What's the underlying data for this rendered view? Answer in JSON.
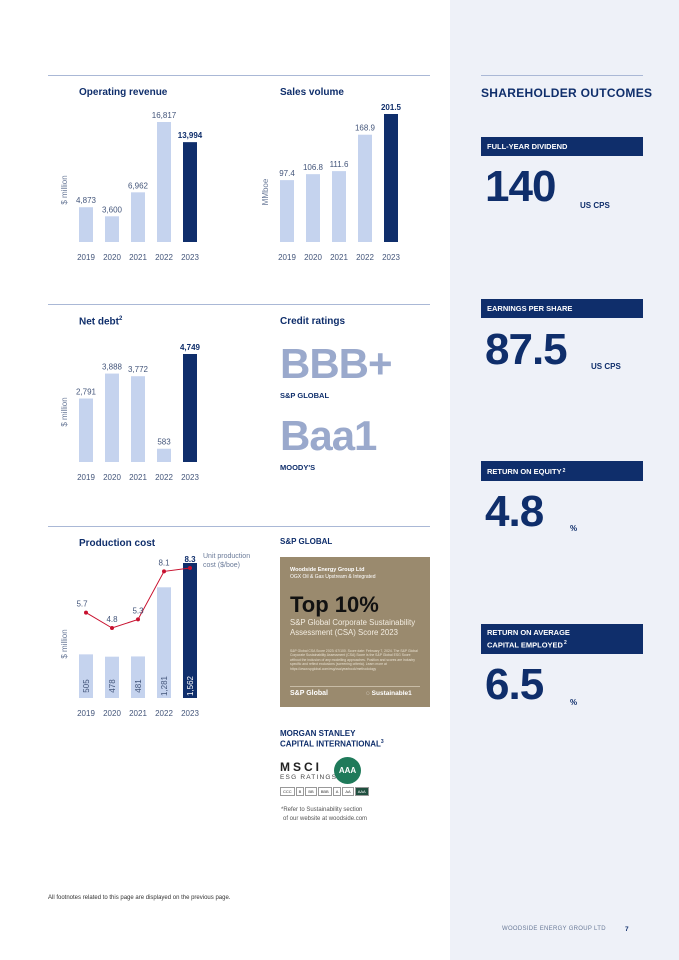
{
  "colors": {
    "navy": "#0f2e6b",
    "light_bar": "#c5d3ee",
    "red_line": "#c8102e",
    "panel": "#eef1f8"
  },
  "chart_data": [
    {
      "type": "bar",
      "title": "Operating revenue",
      "ylabel": "$ million",
      "categories": [
        "2019",
        "2020",
        "2021",
        "2022",
        "2023"
      ],
      "values": [
        4873,
        3600,
        6962,
        16817,
        13994
      ],
      "labels": [
        "4,873",
        "3,600",
        "6,962",
        "16,817",
        "13,994"
      ],
      "highlight_last": true
    },
    {
      "type": "bar",
      "title": "Sales volume",
      "ylabel": "MMboe",
      "categories": [
        "2019",
        "2020",
        "2021",
        "2022",
        "2023"
      ],
      "values": [
        97.4,
        106.8,
        111.6,
        168.9,
        201.5
      ],
      "labels": [
        "97.4",
        "106.8",
        "111.6",
        "168.9",
        "201.5"
      ],
      "highlight_last": true
    },
    {
      "type": "bar",
      "title": "Net debt",
      "title_sup": "2",
      "ylabel": "$ million",
      "categories": [
        "2019",
        "2020",
        "2021",
        "2022",
        "2023"
      ],
      "values": [
        2791,
        3888,
        3772,
        583,
        4749
      ],
      "labels": [
        "2,791",
        "3,888",
        "3,772",
        "583",
        "4,749"
      ],
      "highlight_last": true
    },
    {
      "type": "bar",
      "title": "Production cost",
      "ylabel": "$ million",
      "categories": [
        "2019",
        "2020",
        "2021",
        "2022",
        "2023"
      ],
      "values": [
        505,
        478,
        481,
        1281,
        1562
      ],
      "labels": [
        "505",
        "478",
        "481",
        "1,281",
        "1,562"
      ],
      "highlight_last": true,
      "line_series": {
        "name": "Unit production cost ($/boe)",
        "values": [
          5.7,
          4.8,
          5.3,
          8.1,
          8.3
        ],
        "labels": [
          "5.7",
          "4.8",
          "5.3",
          "8.1",
          "8.3"
        ]
      }
    }
  ],
  "credit": {
    "heading": "Credit ratings",
    "sp_rating": "BBB+",
    "sp_agency": "S&P GLOBAL",
    "moodys_rating": "Baa1",
    "moodys_agency": "MOODY'S"
  },
  "sp_section": {
    "heading": "S&P GLOBAL",
    "card": {
      "company": "Woodside Energy Group Ltd",
      "industry": "OGX Oil & Gas Upstream & Integrated",
      "headline": "Top 10%",
      "subtitle": "S&P Global Corporate Sustainability Assessment (CSA) Score 2023",
      "fine_print": "S&P Global CSA Score 2023: 67/100. Score date: February 7, 2024. The S&P Global Corporate Sustainability Assessment (CSA) Score is the S&P Global ESG Score without the inclusion of any modelling approaches. Position and scores are industry specific and reflect exclusions (screening criteria). Learn more at https://www.spglobal.com/esg/csa/yearbook/methodology",
      "brand_left": "S&P Global",
      "brand_right": "Sustainable1"
    }
  },
  "msci": {
    "heading_line1": "MORGAN STANLEY",
    "heading_line2": "CAPITAL INTERNATIONAL",
    "heading_sup": "3",
    "logo_text": "MSCI",
    "logo_sub": "ESG RATINGS",
    "rating": "AAA",
    "scale": [
      "CCC",
      "B",
      "BB",
      "BBB",
      "A",
      "AA",
      "AAA"
    ],
    "note_line1": "*Refer to Sustainability section",
    "note_line2": "of our website at woodside.com"
  },
  "shareholder": {
    "title": "SHAREHOLDER OUTCOMES",
    "kpis": [
      {
        "label": "FULL-YEAR DIVIDEND",
        "value": "140",
        "unit": "US CPS"
      },
      {
        "label": "EARNINGS PER SHARE",
        "value": "87.5",
        "unit": "US CPS"
      },
      {
        "label": "RETURN ON EQUITY",
        "label_sup": "2",
        "value": "4.8",
        "unit": "%"
      },
      {
        "label": "RETURN ON AVERAGE",
        "label2": "CAPITAL EMPLOYED",
        "label_sup": "2",
        "value": "6.5",
        "unit": "%"
      }
    ]
  },
  "footnote": "All footnotes related to this page are displayed on the previous page.",
  "footer": {
    "company": "WOODSIDE ENERGY GROUP LTD",
    "page": "7"
  }
}
